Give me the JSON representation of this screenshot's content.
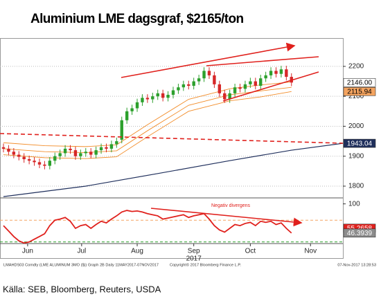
{
  "header": {
    "title": "Aluminium LME dagsgraf, $2165/ton"
  },
  "footer": {
    "left": "LMAHDS03 Comdty (LME ALUMINUM 3MO ($)) Graph 2B  Daily 11MAY2017-07NOV2017",
    "middle": "Copyright© 2017 Bloomberg Finance L.P.",
    "right": "07-Nov-2017 13:28:53",
    "source": "Källa: SEB, Bloomberg, Reuters, USDA"
  },
  "chart_data": [
    {
      "type": "candlestick",
      "up_color": "#2ca02c",
      "down_color": "#d62728",
      "open": [
        1930,
        1925,
        1915,
        1905,
        1898,
        1890,
        1885,
        1880,
        1872,
        1868,
        1885,
        1900,
        1910,
        1925,
        1920,
        1900,
        1910,
        1915,
        1905,
        1920,
        1930,
        1925,
        1940,
        1955,
        2020,
        2050,
        2060,
        2080,
        2095,
        2090,
        2100,
        2110,
        2095,
        2105,
        2120,
        2130,
        2140,
        2135,
        2150,
        2160,
        2185,
        2170,
        2140,
        2110,
        2090,
        2110,
        2130,
        2125,
        2140,
        2150,
        2135,
        2160,
        2170,
        2185,
        2175,
        2190,
        2165
      ],
      "high": [
        1942,
        1937,
        1927,
        1917,
        1910,
        1902,
        1897,
        1892,
        1884,
        1897,
        1912,
        1922,
        1937,
        1937,
        1932,
        1922,
        1927,
        1927,
        1932,
        1942,
        1942,
        1952,
        1962,
        2032,
        2062,
        2072,
        2092,
        2107,
        2107,
        2112,
        2122,
        2122,
        2117,
        2132,
        2142,
        2152,
        2152,
        2162,
        2172,
        2197,
        2197,
        2182,
        2152,
        2122,
        2122,
        2142,
        2142,
        2152,
        2162,
        2162,
        2172,
        2182,
        2197,
        2197,
        2202,
        2202,
        2177
      ],
      "low": [
        1913,
        1903,
        1893,
        1886,
        1878,
        1873,
        1868,
        1860,
        1856,
        1856,
        1873,
        1888,
        1898,
        1908,
        1888,
        1888,
        1898,
        1893,
        1893,
        1908,
        1913,
        1913,
        1928,
        1943,
        2008,
        2038,
        2048,
        2068,
        2078,
        2078,
        2088,
        2083,
        2083,
        2093,
        2108,
        2118,
        2123,
        2123,
        2138,
        2148,
        2158,
        2128,
        2098,
        2078,
        2078,
        2098,
        2113,
        2113,
        2128,
        2123,
        2123,
        2148,
        2158,
        2163,
        2163,
        2153,
        2134
      ],
      "close": [
        1925,
        1915,
        1905,
        1898,
        1890,
        1885,
        1880,
        1872,
        1868,
        1885,
        1900,
        1910,
        1925,
        1920,
        1900,
        1910,
        1915,
        1905,
        1920,
        1930,
        1925,
        1940,
        1950,
        2020,
        2050,
        2060,
        2080,
        2095,
        2090,
        2100,
        2110,
        2095,
        2105,
        2120,
        2130,
        2140,
        2135,
        2150,
        2160,
        2185,
        2170,
        2140,
        2110,
        2090,
        2110,
        2130,
        2125,
        2140,
        2150,
        2135,
        2160,
        2170,
        2185,
        2175,
        2190,
        2165,
        2146
      ],
      "lines": [
        {
          "color": "#f28c28",
          "x": [
            0,
            8,
            16,
            22,
            28,
            36,
            44,
            50,
            56
          ],
          "values": [
            1945,
            1935,
            1932,
            1938,
            2005,
            2090,
            2125,
            2138,
            2148
          ]
        },
        {
          "color": "#f28c28",
          "x": [
            0,
            8,
            16,
            22,
            28,
            36,
            44,
            50,
            56
          ],
          "values": [
            1925,
            1915,
            1912,
            1918,
            1985,
            2070,
            2105,
            2118,
            2130
          ]
        },
        {
          "color": "#f28c28",
          "x": [
            0,
            8,
            16,
            22,
            28,
            36,
            44,
            50,
            56
          ],
          "values": [
            1905,
            1895,
            1892,
            1898,
            1965,
            2050,
            2085,
            2098,
            2116
          ]
        },
        {
          "color": "#1f2f5c",
          "x": [
            0,
            16,
            30,
            44,
            56,
            66
          ],
          "values": [
            1765,
            1800,
            1842,
            1885,
            1920,
            1943
          ]
        }
      ],
      "axis_markers": [
        {
          "value": 2146,
          "label": "2146.00",
          "color": "#ffffff",
          "text_color": "#000000"
        },
        {
          "value": 2116,
          "label": "2115.94",
          "color": "#f4a460",
          "text_color": "#000000"
        },
        {
          "value": 1943,
          "label": "1943.04",
          "color": "#1f2f5c",
          "text_color": "#ffffff"
        }
      ],
      "xlim": [
        0,
        66
      ],
      "ylim": [
        1763,
        2283
      ],
      "yticks": [
        1800,
        1900,
        2000,
        2100,
        2200
      ],
      "grid": true
    },
    {
      "type": "line",
      "color": "#e0201c",
      "annotation": "Negativ divergens",
      "values": [
        60,
        50,
        40,
        32,
        28,
        30,
        35,
        40,
        45,
        60,
        70,
        72,
        75,
        68,
        55,
        60,
        62,
        55,
        62,
        68,
        65,
        72,
        78,
        85,
        88,
        86,
        87,
        85,
        82,
        80,
        78,
        72,
        74,
        76,
        78,
        80,
        75,
        78,
        80,
        82,
        72,
        60,
        52,
        48,
        55,
        62,
        60,
        64,
        66,
        60,
        68,
        66,
        68,
        62,
        65,
        55,
        46.3939
      ],
      "ref_lines": [
        70,
        30
      ],
      "axis_markers": [
        {
          "value": 55.2658,
          "label": "55.2658",
          "color": "#e0201c",
          "text_color": "#ffffff"
        },
        {
          "value": 46.3939,
          "label": "46.3939",
          "color": "#8c8c8c",
          "text_color": "#ffffff"
        }
      ],
      "xlim": [
        0,
        66
      ],
      "ylim": [
        27,
        111
      ],
      "yticks": [
        100
      ],
      "xticks": [
        {
          "value": 4.7,
          "label": "Jun"
        },
        {
          "value": 15.2,
          "label": "Jul"
        },
        {
          "value": 26,
          "label": "Aug"
        },
        {
          "value": 37,
          "label": "Sep"
        },
        {
          "value": 48,
          "label": "Oct"
        },
        {
          "value": 59.7,
          "label": "Nov"
        }
      ],
      "year_label": "2017"
    }
  ]
}
